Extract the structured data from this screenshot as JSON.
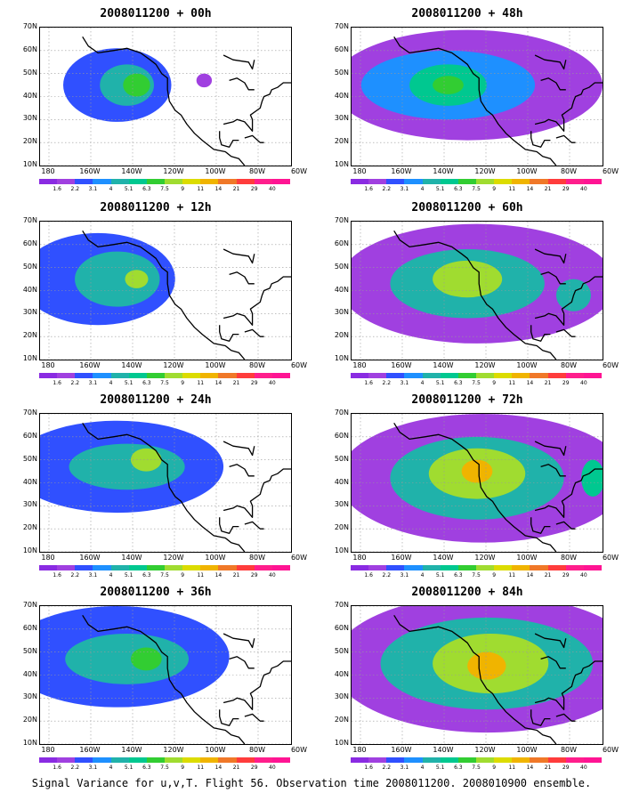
{
  "panels": [
    {
      "title": "2008011200 + 00h",
      "blobs": [
        {
          "cx": -150,
          "cy": 45,
          "rx": 28,
          "ry": 16,
          "level": 2
        },
        {
          "cx": -145,
          "cy": 45,
          "rx": 14,
          "ry": 9,
          "level": 4
        },
        {
          "cx": -140,
          "cy": 45,
          "rx": 7,
          "ry": 5,
          "level": 6
        },
        {
          "cx": -105,
          "cy": 47,
          "rx": 4,
          "ry": 3,
          "level": 1
        }
      ]
    },
    {
      "title": "2008011200 + 48h",
      "blobs": [
        {
          "cx": -130,
          "cy": 45,
          "rx": 70,
          "ry": 24,
          "level": 1
        },
        {
          "cx": -140,
          "cy": 45,
          "rx": 45,
          "ry": 15,
          "level": 3
        },
        {
          "cx": -140,
          "cy": 45,
          "rx": 20,
          "ry": 9,
          "level": 5
        },
        {
          "cx": -140,
          "cy": 45,
          "rx": 8,
          "ry": 4,
          "level": 6
        }
      ]
    },
    {
      "title": "2008011200 + 12h",
      "blobs": [
        {
          "cx": -160,
          "cy": 45,
          "rx": 40,
          "ry": 20,
          "level": 2
        },
        {
          "cx": -150,
          "cy": 45,
          "rx": 22,
          "ry": 12,
          "level": 4
        },
        {
          "cx": -140,
          "cy": 45,
          "rx": 6,
          "ry": 4,
          "level": 7
        }
      ]
    },
    {
      "title": "2008011200 + 60h",
      "blobs": [
        {
          "cx": -125,
          "cy": 43,
          "rx": 72,
          "ry": 26,
          "level": 1
        },
        {
          "cx": -130,
          "cy": 43,
          "rx": 40,
          "ry": 15,
          "level": 4
        },
        {
          "cx": -130,
          "cy": 45,
          "rx": 18,
          "ry": 8,
          "level": 7
        },
        {
          "cx": -75,
          "cy": 38,
          "rx": 9,
          "ry": 7,
          "level": 4
        }
      ]
    },
    {
      "title": "2008011200 + 24h",
      "blobs": [
        {
          "cx": -150,
          "cy": 47,
          "rx": 55,
          "ry": 20,
          "level": 2
        },
        {
          "cx": -145,
          "cy": 47,
          "rx": 30,
          "ry": 10,
          "level": 4
        },
        {
          "cx": -135,
          "cy": 50,
          "rx": 8,
          "ry": 5,
          "level": 7
        }
      ]
    },
    {
      "title": "2008011200 + 72h",
      "blobs": [
        {
          "cx": -122,
          "cy": 42,
          "rx": 75,
          "ry": 28,
          "level": 1
        },
        {
          "cx": -125,
          "cy": 42,
          "rx": 45,
          "ry": 18,
          "level": 4
        },
        {
          "cx": -125,
          "cy": 44,
          "rx": 25,
          "ry": 11,
          "level": 7
        },
        {
          "cx": -125,
          "cy": 45,
          "rx": 8,
          "ry": 5,
          "level": 9
        },
        {
          "cx": -65,
          "cy": 42,
          "rx": 6,
          "ry": 8,
          "level": 5
        }
      ]
    },
    {
      "title": "2008011200 + 36h",
      "blobs": [
        {
          "cx": -150,
          "cy": 48,
          "rx": 58,
          "ry": 22,
          "level": 2
        },
        {
          "cx": -145,
          "cy": 47,
          "rx": 32,
          "ry": 11,
          "level": 4
        },
        {
          "cx": -135,
          "cy": 47,
          "rx": 8,
          "ry": 5,
          "level": 6
        }
      ]
    },
    {
      "title": "2008011200 + 84h",
      "blobs": [
        {
          "cx": -120,
          "cy": 45,
          "rx": 80,
          "ry": 30,
          "level": 1
        },
        {
          "cx": -120,
          "cy": 45,
          "rx": 55,
          "ry": 20,
          "level": 4
        },
        {
          "cx": -118,
          "cy": 45,
          "rx": 30,
          "ry": 13,
          "level": 7
        },
        {
          "cx": -120,
          "cy": 44,
          "rx": 10,
          "ry": 6,
          "level": 9
        }
      ]
    }
  ],
  "axes": {
    "y_labels": [
      "10N",
      "20N",
      "30N",
      "40N",
      "50N",
      "60N",
      "70N"
    ],
    "x_labels": [
      "180",
      "160W",
      "140W",
      "120W",
      "100W",
      "80W",
      "60W"
    ],
    "lon_range": [
      -190,
      -60
    ],
    "lat_range": [
      10,
      70
    ]
  },
  "colorbar": {
    "labels": [
      "1.6",
      "2.2",
      "3.1",
      "4",
      "5.1",
      "6.3",
      "7.5",
      "9",
      "11",
      "14",
      "21",
      "29",
      "40"
    ],
    "colors": [
      "#8a2be2",
      "#a040e0",
      "#3050ff",
      "#1e90ff",
      "#20b2aa",
      "#00c890",
      "#32cd32",
      "#a0dc30",
      "#dcdc00",
      "#f0b400",
      "#f07828",
      "#ff3c3c",
      "#ff1e8c",
      "#ff1493"
    ]
  },
  "caption": "Signal Variance for u,v,T. Flight 56. Observation time 2008011200. 2008010900 ensemble."
}
